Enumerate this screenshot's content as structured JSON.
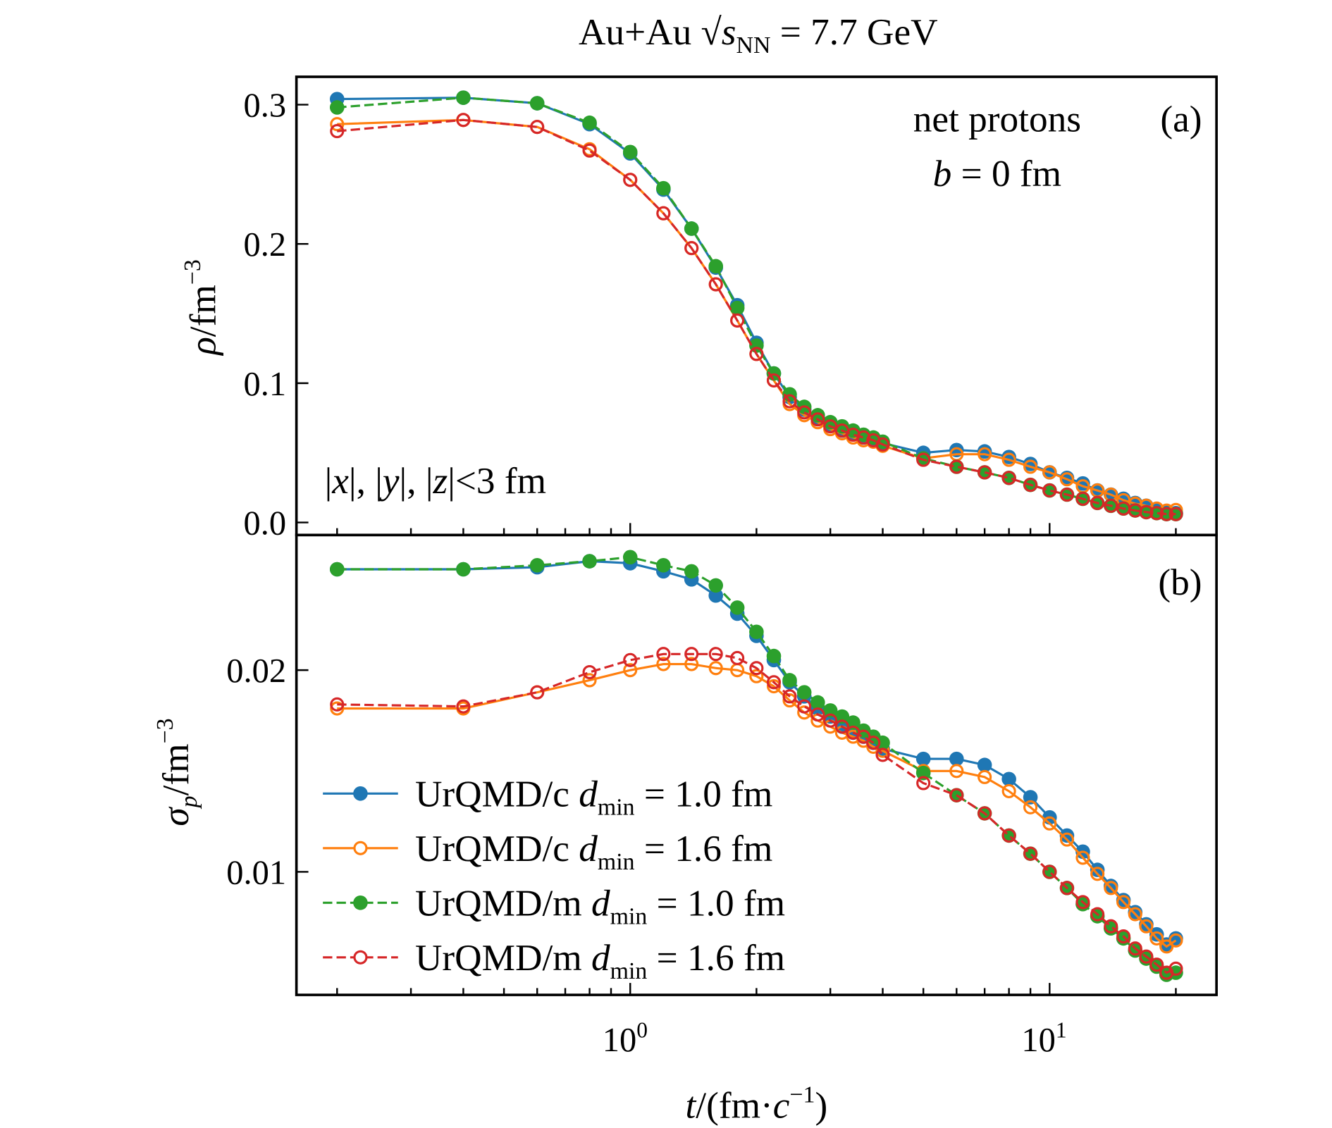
{
  "title": {
    "prefix": "Au+Au ",
    "sqrt": "√",
    "s": "s",
    "sub": "NN",
    "suffix": " = 7.7 GeV"
  },
  "colors": {
    "c_1.0": "#1f77b4",
    "c_1.6": "#ff7f0e",
    "m_1.0": "#2ca02c",
    "m_1.6": "#d62728"
  },
  "chart_data": [
    {
      "type": "line",
      "panel_label": "(a)",
      "annotations": [
        "net protons",
        "b = 0 fm",
        "|x|, |y|, |z|<3 fm"
      ],
      "ylabel": "ρ/fm⁻³",
      "xscale": "log",
      "xlim": [
        0.16,
        25
      ],
      "ylim": [
        -0.009,
        0.32
      ],
      "yticks": [
        "0.0",
        "0.1",
        "0.2",
        "0.3"
      ],
      "x": [
        0.2,
        0.4,
        0.6,
        0.8,
        1.0,
        1.2,
        1.4,
        1.6,
        1.8,
        2.0,
        2.2,
        2.4,
        2.6,
        2.8,
        3.0,
        3.2,
        3.4,
        3.6,
        3.8,
        4.0,
        5,
        6,
        7,
        8,
        9,
        10,
        11,
        12,
        13,
        14,
        15,
        16,
        17,
        18,
        19,
        20
      ],
      "series": [
        {
          "name": "UrQMD/c d_min = 1.0 fm",
          "color": "#1f77b4",
          "line": "solid",
          "marker": "filled",
          "values": [
            0.304,
            0.305,
            0.301,
            0.286,
            0.265,
            0.239,
            0.211,
            0.183,
            0.156,
            0.129,
            0.107,
            0.09,
            0.081,
            0.075,
            0.07,
            0.066,
            0.064,
            0.061,
            0.059,
            0.057,
            0.05,
            0.052,
            0.051,
            0.047,
            0.042,
            0.036,
            0.032,
            0.028,
            0.023,
            0.02,
            0.017,
            0.014,
            0.012,
            0.009,
            0.007,
            0.0067
          ]
        },
        {
          "name": "UrQMD/c d_min = 1.6 fm",
          "color": "#ff7f0e",
          "line": "solid",
          "marker": "open",
          "values": [
            0.286,
            0.289,
            0.284,
            0.268,
            0.246,
            0.222,
            0.197,
            0.171,
            0.145,
            0.121,
            0.102,
            0.085,
            0.077,
            0.072,
            0.067,
            0.064,
            0.061,
            0.059,
            0.058,
            0.055,
            0.046,
            0.049,
            0.049,
            0.045,
            0.04,
            0.036,
            0.031,
            0.026,
            0.023,
            0.02,
            0.016,
            0.0135,
            0.012,
            0.01,
            0.0085,
            0.009
          ]
        },
        {
          "name": "UrQMD/m d_min = 1.0 fm",
          "color": "#2ca02c",
          "line": "dashed",
          "marker": "filled",
          "values": [
            0.298,
            0.305,
            0.301,
            0.287,
            0.266,
            0.24,
            0.211,
            0.184,
            0.154,
            0.127,
            0.107,
            0.092,
            0.083,
            0.077,
            0.072,
            0.069,
            0.066,
            0.063,
            0.061,
            0.058,
            0.046,
            0.04,
            0.036,
            0.032,
            0.027,
            0.023,
            0.02,
            0.017,
            0.014,
            0.012,
            0.01,
            0.0086,
            0.0074,
            0.0067,
            0.006,
            0.006
          ]
        },
        {
          "name": "UrQMD/m d_min = 1.6 fm",
          "color": "#d62728",
          "line": "dashed",
          "marker": "open",
          "values": [
            0.281,
            0.289,
            0.284,
            0.267,
            0.246,
            0.222,
            0.197,
            0.171,
            0.145,
            0.121,
            0.102,
            0.087,
            0.079,
            0.074,
            0.069,
            0.066,
            0.063,
            0.061,
            0.059,
            0.056,
            0.045,
            0.04,
            0.036,
            0.032,
            0.027,
            0.023,
            0.02,
            0.017,
            0.014,
            0.012,
            0.01,
            0.0086,
            0.0074,
            0.0067,
            0.006,
            0.006
          ]
        }
      ]
    },
    {
      "type": "line",
      "panel_label": "(b)",
      "ylabel": "σp/fm⁻³",
      "xlabel": "t/(fm·c⁻¹)",
      "xscale": "log",
      "xlim": [
        0.16,
        25
      ],
      "ylim": [
        0.0039,
        0.0267
      ],
      "yticks": [
        "0.01",
        "0.02"
      ],
      "xticks": [
        {
          "base": "10",
          "exp": "0"
        },
        {
          "base": "10",
          "exp": "1"
        }
      ],
      "legend": {
        "placement": "lower-left",
        "entries": [
          {
            "model": "UrQMD/c",
            "d": "d",
            "sub": "min",
            "value": " = 1.0 fm"
          },
          {
            "model": "UrQMD/c",
            "d": "d",
            "sub": "min",
            "value": " = 1.6 fm"
          },
          {
            "model": "UrQMD/m",
            "d": "d",
            "sub": "min",
            "value": " = 1.0 fm"
          },
          {
            "model": "UrQMD/m",
            "d": "d",
            "sub": "min",
            "value": " = 1.6 fm"
          }
        ]
      },
      "x": [
        0.2,
        0.4,
        0.6,
        0.8,
        1.0,
        1.2,
        1.4,
        1.6,
        1.8,
        2.0,
        2.2,
        2.4,
        2.6,
        2.8,
        3.0,
        3.2,
        3.4,
        3.6,
        3.8,
        4.0,
        5,
        6,
        7,
        8,
        9,
        10,
        11,
        12,
        13,
        14,
        15,
        16,
        17,
        18,
        19,
        20
      ],
      "series": [
        {
          "name": "UrQMD/c d_min = 1.0 fm",
          "color": "#1f77b4",
          "line": "solid",
          "marker": "filled",
          "values": [
            0.025,
            0.025,
            0.0251,
            0.0254,
            0.0253,
            0.0249,
            0.0245,
            0.0237,
            0.0228,
            0.0217,
            0.0205,
            0.0194,
            0.0187,
            0.0181,
            0.0177,
            0.0172,
            0.0169,
            0.0167,
            0.0164,
            0.0161,
            0.0156,
            0.0156,
            0.0153,
            0.0146,
            0.0137,
            0.0127,
            0.0118,
            0.011,
            0.0101,
            0.0093,
            0.0086,
            0.008,
            0.0074,
            0.0069,
            0.0064,
            0.0067
          ]
        },
        {
          "name": "UrQMD/c d_min = 1.6 fm",
          "color": "#ff7f0e",
          "line": "solid",
          "marker": "open",
          "values": [
            0.0181,
            0.0181,
            0.0189,
            0.0195,
            0.02,
            0.0203,
            0.0203,
            0.0201,
            0.02,
            0.0197,
            0.0192,
            0.0185,
            0.0179,
            0.0175,
            0.0172,
            0.0169,
            0.0167,
            0.0165,
            0.0162,
            0.016,
            0.015,
            0.015,
            0.0147,
            0.014,
            0.0132,
            0.0124,
            0.0116,
            0.0107,
            0.0099,
            0.0092,
            0.0085,
            0.0079,
            0.0073,
            0.0067,
            0.0063,
            0.0066
          ]
        },
        {
          "name": "UrQMD/m d_min = 1.0 fm",
          "color": "#2ca02c",
          "line": "dashed",
          "marker": "filled",
          "values": [
            0.025,
            0.025,
            0.0252,
            0.0254,
            0.0256,
            0.0252,
            0.0249,
            0.0242,
            0.0231,
            0.0219,
            0.0207,
            0.0195,
            0.0189,
            0.0184,
            0.018,
            0.0177,
            0.0174,
            0.017,
            0.0167,
            0.0164,
            0.0149,
            0.0138,
            0.0129,
            0.0118,
            0.0109,
            0.01,
            0.0092,
            0.0084,
            0.0078,
            0.0072,
            0.0067,
            0.0061,
            0.0057,
            0.0053,
            0.0049,
            0.005
          ]
        },
        {
          "name": "UrQMD/m d_min = 1.6 fm",
          "color": "#d62728",
          "line": "dashed",
          "marker": "open",
          "values": [
            0.0183,
            0.0182,
            0.0189,
            0.0199,
            0.0205,
            0.0208,
            0.0208,
            0.0208,
            0.0206,
            0.0201,
            0.0194,
            0.0187,
            0.0182,
            0.0178,
            0.0175,
            0.0172,
            0.0169,
            0.0167,
            0.0164,
            0.0158,
            0.0144,
            0.0138,
            0.0129,
            0.0118,
            0.0109,
            0.01,
            0.0092,
            0.0085,
            0.0079,
            0.0073,
            0.0068,
            0.0062,
            0.0058,
            0.0054,
            0.005,
            0.0052
          ]
        }
      ]
    }
  ],
  "labels": {
    "ylabel_a": {
      "sym": "ρ",
      "unit": "/fm",
      "exp": "−3"
    },
    "ylabel_b": {
      "sym": "σ",
      "sub": "p",
      "unit": "/fm",
      "exp": "−3"
    },
    "xlabel": {
      "t": "t",
      "open": "/(fm·",
      "c": "c",
      "exp": "−1",
      "close": ")"
    },
    "net_protons": "net protons",
    "b_eq": {
      "b": "b",
      "rest": " = 0 fm"
    },
    "cut": {
      "p1": "|",
      "x": "x",
      "p2": "|, |",
      "y": "y",
      "p3": "|, |",
      "z": "z",
      "p4": "|<3 fm"
    }
  }
}
